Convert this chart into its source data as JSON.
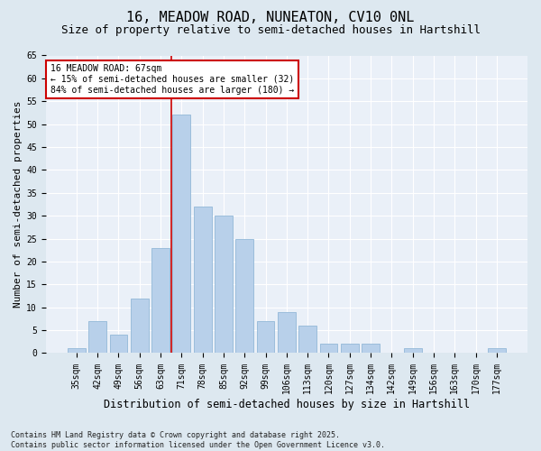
{
  "title1": "16, MEADOW ROAD, NUNEATON, CV10 0NL",
  "title2": "Size of property relative to semi-detached houses in Hartshill",
  "xlabel": "Distribution of semi-detached houses by size in Hartshill",
  "ylabel": "Number of semi-detached properties",
  "categories": [
    "35sqm",
    "42sqm",
    "49sqm",
    "56sqm",
    "63sqm",
    "71sqm",
    "78sqm",
    "85sqm",
    "92sqm",
    "99sqm",
    "106sqm",
    "113sqm",
    "120sqm",
    "127sqm",
    "134sqm",
    "142sqm",
    "149sqm",
    "156sqm",
    "163sqm",
    "170sqm",
    "177sqm"
  ],
  "values": [
    1,
    7,
    4,
    12,
    23,
    52,
    32,
    30,
    25,
    7,
    9,
    6,
    2,
    2,
    2,
    0,
    1,
    0,
    0,
    0,
    1
  ],
  "bar_color": "#b8d0ea",
  "bar_edge_color": "#92b8d8",
  "vline_x_index": 5,
  "annotation_text": "16 MEADOW ROAD: 67sqm\n← 15% of semi-detached houses are smaller (32)\n84% of semi-detached houses are larger (180) →",
  "annotation_box_color": "#ffffff",
  "annotation_box_edge_color": "#cc0000",
  "vline_color": "#cc0000",
  "ylim": [
    0,
    65
  ],
  "yticks": [
    0,
    5,
    10,
    15,
    20,
    25,
    30,
    35,
    40,
    45,
    50,
    55,
    60,
    65
  ],
  "footnote1": "Contains HM Land Registry data © Crown copyright and database right 2025.",
  "footnote2": "Contains public sector information licensed under the Open Government Licence v3.0.",
  "bg_color": "#dde8f0",
  "plot_bg_color": "#eaf0f8",
  "title1_fontsize": 11,
  "title2_fontsize": 9,
  "tick_fontsize": 7,
  "ylabel_fontsize": 8,
  "xlabel_fontsize": 8.5,
  "annotation_fontsize": 7,
  "footnote_fontsize": 6
}
